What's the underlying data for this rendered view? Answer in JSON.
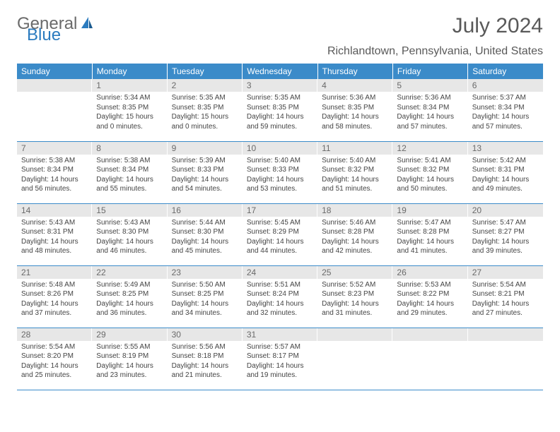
{
  "logo": {
    "part1": "General",
    "part2": "Blue"
  },
  "title": "July 2024",
  "location": "Richlandtown, Pennsylvania, United States",
  "colors": {
    "header_bg": "#3b8bc9",
    "header_fg": "#ffffff",
    "daynum_bg": "#e7e7e7",
    "text": "#595959"
  },
  "dayHeaders": [
    "Sunday",
    "Monday",
    "Tuesday",
    "Wednesday",
    "Thursday",
    "Friday",
    "Saturday"
  ],
  "weeks": [
    [
      {
        "n": "",
        "sr": "",
        "ss": "",
        "dl": ""
      },
      {
        "n": "1",
        "sr": "5:34 AM",
        "ss": "8:35 PM",
        "dl": "15 hours and 0 minutes."
      },
      {
        "n": "2",
        "sr": "5:35 AM",
        "ss": "8:35 PM",
        "dl": "15 hours and 0 minutes."
      },
      {
        "n": "3",
        "sr": "5:35 AM",
        "ss": "8:35 PM",
        "dl": "14 hours and 59 minutes."
      },
      {
        "n": "4",
        "sr": "5:36 AM",
        "ss": "8:35 PM",
        "dl": "14 hours and 58 minutes."
      },
      {
        "n": "5",
        "sr": "5:36 AM",
        "ss": "8:34 PM",
        "dl": "14 hours and 57 minutes."
      },
      {
        "n": "6",
        "sr": "5:37 AM",
        "ss": "8:34 PM",
        "dl": "14 hours and 57 minutes."
      }
    ],
    [
      {
        "n": "7",
        "sr": "5:38 AM",
        "ss": "8:34 PM",
        "dl": "14 hours and 56 minutes."
      },
      {
        "n": "8",
        "sr": "5:38 AM",
        "ss": "8:34 PM",
        "dl": "14 hours and 55 minutes."
      },
      {
        "n": "9",
        "sr": "5:39 AM",
        "ss": "8:33 PM",
        "dl": "14 hours and 54 minutes."
      },
      {
        "n": "10",
        "sr": "5:40 AM",
        "ss": "8:33 PM",
        "dl": "14 hours and 53 minutes."
      },
      {
        "n": "11",
        "sr": "5:40 AM",
        "ss": "8:32 PM",
        "dl": "14 hours and 51 minutes."
      },
      {
        "n": "12",
        "sr": "5:41 AM",
        "ss": "8:32 PM",
        "dl": "14 hours and 50 minutes."
      },
      {
        "n": "13",
        "sr": "5:42 AM",
        "ss": "8:31 PM",
        "dl": "14 hours and 49 minutes."
      }
    ],
    [
      {
        "n": "14",
        "sr": "5:43 AM",
        "ss": "8:31 PM",
        "dl": "14 hours and 48 minutes."
      },
      {
        "n": "15",
        "sr": "5:43 AM",
        "ss": "8:30 PM",
        "dl": "14 hours and 46 minutes."
      },
      {
        "n": "16",
        "sr": "5:44 AM",
        "ss": "8:30 PM",
        "dl": "14 hours and 45 minutes."
      },
      {
        "n": "17",
        "sr": "5:45 AM",
        "ss": "8:29 PM",
        "dl": "14 hours and 44 minutes."
      },
      {
        "n": "18",
        "sr": "5:46 AM",
        "ss": "8:28 PM",
        "dl": "14 hours and 42 minutes."
      },
      {
        "n": "19",
        "sr": "5:47 AM",
        "ss": "8:28 PM",
        "dl": "14 hours and 41 minutes."
      },
      {
        "n": "20",
        "sr": "5:47 AM",
        "ss": "8:27 PM",
        "dl": "14 hours and 39 minutes."
      }
    ],
    [
      {
        "n": "21",
        "sr": "5:48 AM",
        "ss": "8:26 PM",
        "dl": "14 hours and 37 minutes."
      },
      {
        "n": "22",
        "sr": "5:49 AM",
        "ss": "8:25 PM",
        "dl": "14 hours and 36 minutes."
      },
      {
        "n": "23",
        "sr": "5:50 AM",
        "ss": "8:25 PM",
        "dl": "14 hours and 34 minutes."
      },
      {
        "n": "24",
        "sr": "5:51 AM",
        "ss": "8:24 PM",
        "dl": "14 hours and 32 minutes."
      },
      {
        "n": "25",
        "sr": "5:52 AM",
        "ss": "8:23 PM",
        "dl": "14 hours and 31 minutes."
      },
      {
        "n": "26",
        "sr": "5:53 AM",
        "ss": "8:22 PM",
        "dl": "14 hours and 29 minutes."
      },
      {
        "n": "27",
        "sr": "5:54 AM",
        "ss": "8:21 PM",
        "dl": "14 hours and 27 minutes."
      }
    ],
    [
      {
        "n": "28",
        "sr": "5:54 AM",
        "ss": "8:20 PM",
        "dl": "14 hours and 25 minutes."
      },
      {
        "n": "29",
        "sr": "5:55 AM",
        "ss": "8:19 PM",
        "dl": "14 hours and 23 minutes."
      },
      {
        "n": "30",
        "sr": "5:56 AM",
        "ss": "8:18 PM",
        "dl": "14 hours and 21 minutes."
      },
      {
        "n": "31",
        "sr": "5:57 AM",
        "ss": "8:17 PM",
        "dl": "14 hours and 19 minutes."
      },
      {
        "n": "",
        "sr": "",
        "ss": "",
        "dl": ""
      },
      {
        "n": "",
        "sr": "",
        "ss": "",
        "dl": ""
      },
      {
        "n": "",
        "sr": "",
        "ss": "",
        "dl": ""
      }
    ]
  ]
}
